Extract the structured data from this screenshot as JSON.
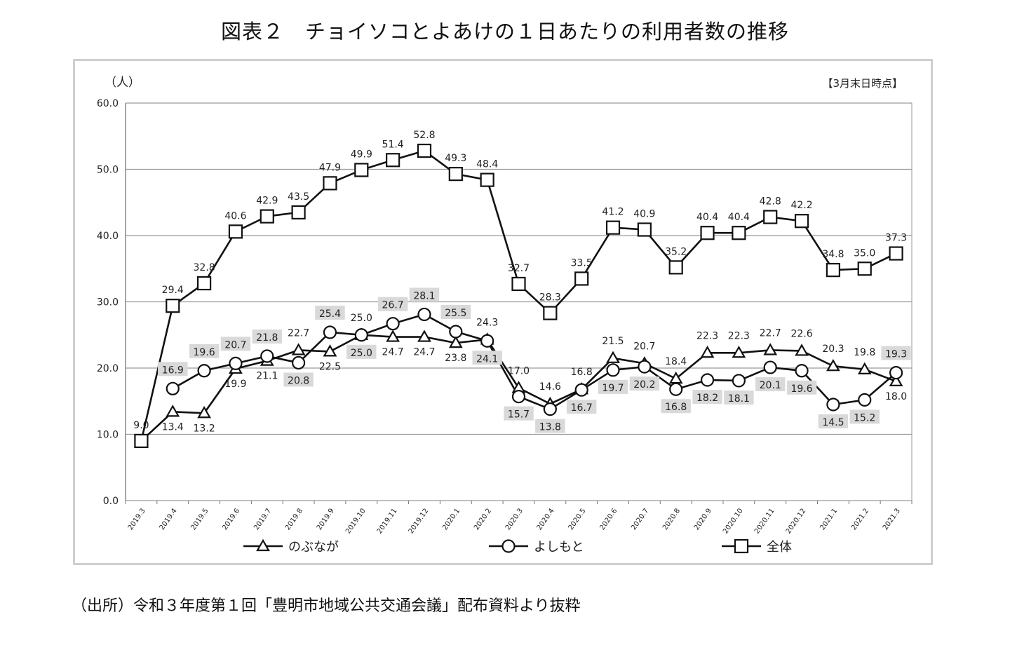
{
  "title": "図表２　チョイソコとよあけの１日あたりの利用者数の推移",
  "source": "（出所）令和３年度第１回「豊明市地域公共交通会議」配布資料より抜粋",
  "chart_data": {
    "type": "line",
    "unit_label": "（人）",
    "note": "【3月末日時点】",
    "ylim": [
      0,
      60
    ],
    "yticks": [
      "0.0",
      "10.0",
      "20.0",
      "30.0",
      "40.0",
      "50.0",
      "60.0"
    ],
    "grid": true,
    "legend_position": "bottom",
    "categories": [
      "2019.3",
      "2019.4",
      "2019.5",
      "2019.6",
      "2019.7",
      "2019.8",
      "2019.9",
      "2019.10",
      "2019.11",
      "2019.12",
      "2020.1",
      "2020.2",
      "2020.3",
      "2020.4",
      "2020.5",
      "2020.6",
      "2020.7",
      "2020.8",
      "2020.9",
      "2020.10",
      "2020.11",
      "2020.12",
      "2021.1",
      "2021.2",
      "2021.3"
    ],
    "series": [
      {
        "name": "のぶなが",
        "marker": "triangle",
        "values": [
          9.0,
          13.4,
          13.2,
          19.9,
          21.1,
          22.7,
          22.5,
          25.0,
          24.7,
          24.7,
          23.8,
          24.3,
          17.0,
          14.6,
          16.8,
          21.5,
          20.7,
          18.4,
          22.3,
          22.3,
          22.7,
          22.6,
          20.3,
          19.8,
          18.0
        ]
      },
      {
        "name": "よしもと",
        "marker": "circle",
        "values": [
          null,
          16.9,
          19.6,
          20.7,
          21.8,
          20.8,
          25.4,
          25.0,
          26.7,
          28.1,
          25.5,
          24.1,
          15.7,
          13.8,
          16.7,
          19.7,
          20.2,
          16.8,
          18.2,
          18.1,
          20.1,
          19.6,
          14.5,
          15.2,
          19.3
        ]
      },
      {
        "name": "全体",
        "marker": "square",
        "values": [
          9.0,
          29.4,
          32.8,
          40.6,
          42.9,
          43.5,
          47.9,
          49.9,
          51.4,
          52.8,
          49.3,
          48.4,
          32.7,
          28.3,
          33.5,
          41.2,
          40.9,
          35.2,
          40.4,
          40.4,
          42.8,
          42.2,
          34.8,
          35.0,
          37.3
        ]
      }
    ],
    "label_colors": {
      "shaded_label_bg": "#d9d9d9",
      "line": "#111111",
      "grid": "#9a9a9a"
    }
  }
}
